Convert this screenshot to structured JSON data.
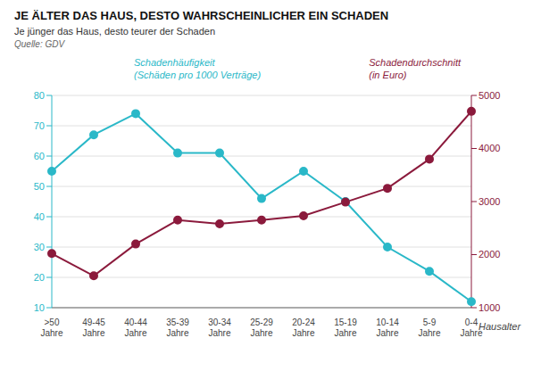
{
  "chart_data": {
    "type": "line",
    "title": "JE ÄLTER DAS HAUS, DESTO WAHRSCHEINLICHER EIN SCHADEN",
    "subtitle": "Je jünger das Haus, desto teurer der Schaden",
    "source": "Quelle: GDV",
    "xlabel": "Hausalter",
    "categories": [
      ">50\nJahre",
      "49-45\nJahre",
      "40-44\nJahre",
      "35-39\nJahre",
      "30-34\nJahre",
      "25-29\nJahre",
      "20-24\nJahre",
      "15-19\nJahre",
      "10-14\nJahre",
      "5-9\nJahre",
      "0-4\nJahre"
    ],
    "series": [
      {
        "name": "Schadenhäufigkeit\n(Schäden pro 1000 Verträge)",
        "color": "#2ab8c8",
        "values": [
          55,
          67,
          74,
          61,
          61,
          46,
          55,
          45,
          30,
          22,
          12
        ],
        "marker": "circle",
        "line_style": "solid"
      },
      {
        "name": "Schadendurchschnitt\n(in Euro)",
        "color": "#8b1a3c",
        "values": [
          2020,
          1600,
          2200,
          2650,
          2580,
          2650,
          2730,
          2990,
          3250,
          3800,
          4700
        ],
        "axis": "y2",
        "marker": "circle",
        "line_style": "solid"
      }
    ],
    "ylim": [
      10,
      80
    ],
    "yticks": [
      10,
      20,
      30,
      40,
      50,
      60,
      70,
      80
    ],
    "y2lim": [
      1000,
      5000
    ],
    "y2ticks": [
      1000,
      2000,
      3000,
      4000,
      5000
    ],
    "grid": true
  }
}
